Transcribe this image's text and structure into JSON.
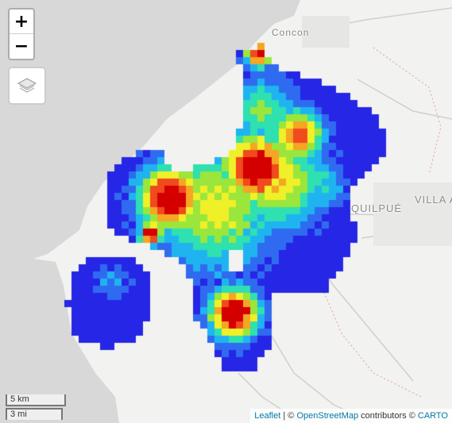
{
  "map": {
    "place_labels": {
      "concon": "Concon",
      "villa": "VILLA A",
      "quilpue": "QUILPUÉ"
    }
  },
  "controls": {
    "zoom_in": "+",
    "zoom_out": "−",
    "layers_icon": "layers-icon"
  },
  "scale": {
    "metric": "5 km",
    "imperial": "3 mi"
  },
  "attribution": {
    "leaflet": "Leaflet",
    "separator": "|",
    "copyright_1": "©",
    "osm": "OpenStreetMap",
    "contributors": "contributors",
    "copyright_2": "©",
    "carto": "CARTO"
  },
  "heatmap": {
    "color_ramp": [
      "#2626e6",
      "#2f6bf0",
      "#1fb4f0",
      "#2fe0b0",
      "#9ae63c",
      "#f0f028",
      "#f5a623",
      "#f04a1e",
      "#d40000"
    ]
  }
}
